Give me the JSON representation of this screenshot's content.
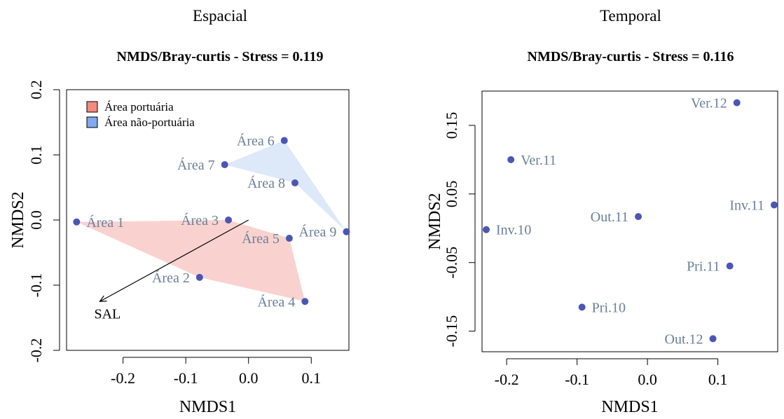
{
  "colors": {
    "port_fill": "#f9d2d0",
    "nonport_fill": "#dde8f8",
    "legend_port": "#f48a80",
    "legend_nonport": "#82a8ee",
    "point": "#4b56b4",
    "point_label": "#6a8099",
    "axis": "#000000",
    "arrow": "#000000"
  },
  "chart_data": [
    {
      "type": "scatter",
      "panel_title": "Espacial",
      "title": "NMDS/Bray-curtis - Stress = 0.119",
      "xlabel": "NMDS1",
      "ylabel": "NMDS2",
      "xlim": [
        -0.29,
        0.16
      ],
      "ylim": [
        -0.2,
        0.2
      ],
      "xticks": [
        -0.2,
        -0.1,
        0.0,
        0.1
      ],
      "xtick_labels": [
        "-0.2",
        "-0.1",
        "0.0",
        "0.1"
      ],
      "yticks": [
        -0.2,
        -0.1,
        0.0,
        0.1,
        0.2
      ],
      "ytick_labels": [
        "-0.2",
        "-0.1",
        "0.0",
        "0.1",
        "0.2"
      ],
      "grid": false,
      "legend_position": "top-left",
      "legend": [
        {
          "label": "Área portuária",
          "color_key": "legend_port"
        },
        {
          "label": "Área não-portuária",
          "color_key": "legend_nonport"
        }
      ],
      "points": [
        {
          "label": "Área 1",
          "x": -0.274,
          "y": -0.003,
          "label_side": "right"
        },
        {
          "label": "Área 2",
          "x": -0.078,
          "y": -0.088,
          "label_side": "left"
        },
        {
          "label": "Área 3",
          "x": -0.032,
          "y": 0.0,
          "label_side": "left"
        },
        {
          "label": "Área 4",
          "x": 0.09,
          "y": -0.125,
          "label_side": "left"
        },
        {
          "label": "Área 5",
          "x": 0.065,
          "y": -0.028,
          "label_side": "left"
        },
        {
          "label": "Área 6",
          "x": 0.057,
          "y": 0.122,
          "label_side": "left"
        },
        {
          "label": "Área 7",
          "x": -0.038,
          "y": 0.085,
          "label_side": "left"
        },
        {
          "label": "Área 8",
          "x": 0.074,
          "y": 0.057,
          "label_side": "left"
        },
        {
          "label": "Área 9",
          "x": 0.156,
          "y": -0.018,
          "label_side": "left"
        }
      ],
      "hulls": [
        {
          "group": "Área portuária",
          "color_key": "port_fill",
          "points": [
            "Área 1",
            "Área 3",
            "Área 5",
            "Área 4",
            "Área 2"
          ]
        },
        {
          "group": "Área não-portuária",
          "color_key": "nonport_fill",
          "points": [
            "Área 7",
            "Área 6",
            "Área 9",
            "Área 8"
          ]
        }
      ],
      "vectors": [
        {
          "label": "SAL",
          "x0": 0.0,
          "y0": 0.0,
          "x1": -0.237,
          "y1": -0.125
        }
      ]
    },
    {
      "type": "scatter",
      "panel_title": "Temporal",
      "title": "NMDS/Bray-curtis - Stress = 0.116",
      "xlabel": "NMDS1",
      "ylabel": "NMDS2",
      "xlim": [
        -0.235,
        0.185
      ],
      "ylim": [
        -0.18,
        0.2
      ],
      "xticks": [
        -0.2,
        -0.1,
        0.0,
        0.1
      ],
      "xtick_labels": [
        "-0.2",
        "-0.1",
        "0.0",
        "0.1"
      ],
      "yticks": [
        -0.15,
        -0.05,
        0.05,
        0.15
      ],
      "ytick_labels": [
        "-0.15",
        "-0.05",
        "0.05",
        "0.15"
      ],
      "grid": false,
      "legend_position": "none",
      "points": [
        {
          "label": "Ver.12",
          "x": 0.127,
          "y": 0.183,
          "label_side": "left"
        },
        {
          "label": "Ver.11",
          "x": -0.194,
          "y": 0.1,
          "label_side": "right"
        },
        {
          "label": "Inv.11",
          "x": 0.18,
          "y": 0.034,
          "label_side": "left"
        },
        {
          "label": "Out.11",
          "x": -0.013,
          "y": 0.017,
          "label_side": "left"
        },
        {
          "label": "Inv.10",
          "x": -0.229,
          "y": -0.002,
          "label_side": "right"
        },
        {
          "label": "Pri.11",
          "x": 0.117,
          "y": -0.055,
          "label_side": "left"
        },
        {
          "label": "Pri.10",
          "x": -0.093,
          "y": -0.115,
          "label_side": "right"
        },
        {
          "label": "Out.12",
          "x": 0.093,
          "y": -0.161,
          "label_side": "left"
        }
      ]
    }
  ]
}
